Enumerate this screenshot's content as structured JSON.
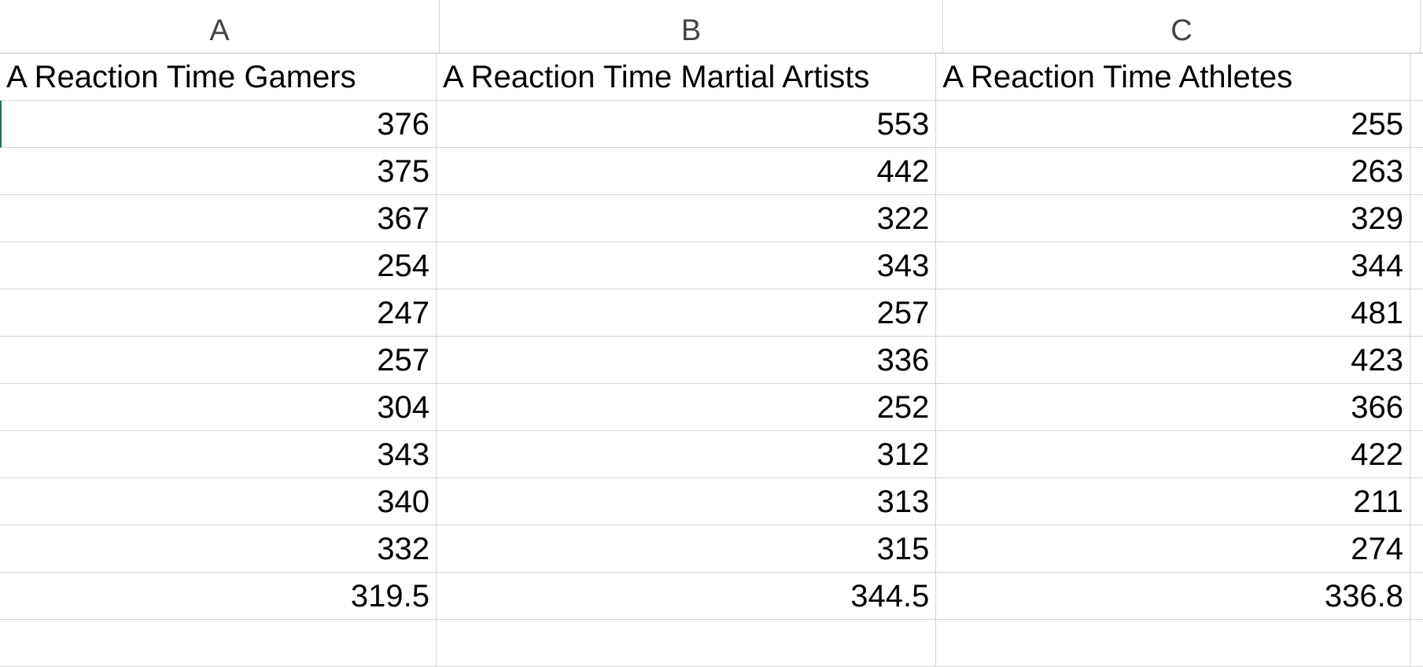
{
  "columns": [
    "A",
    "B",
    "C"
  ],
  "headers": [
    "A Reaction Time Gamers",
    "A Reaction Time Martial Artists",
    "A Reaction Time Athletes"
  ],
  "rows": [
    [
      "376",
      "553",
      "255"
    ],
    [
      "375",
      "442",
      "263"
    ],
    [
      "367",
      "322",
      "329"
    ],
    [
      "254",
      "343",
      "344"
    ],
    [
      "247",
      "257",
      "481"
    ],
    [
      "257",
      "336",
      "423"
    ],
    [
      "304",
      "252",
      "366"
    ],
    [
      "343",
      "312",
      "422"
    ],
    [
      "340",
      "313",
      "211"
    ],
    [
      "332",
      "315",
      "274"
    ],
    [
      "319.5",
      "344.5",
      "336.8"
    ]
  ]
}
